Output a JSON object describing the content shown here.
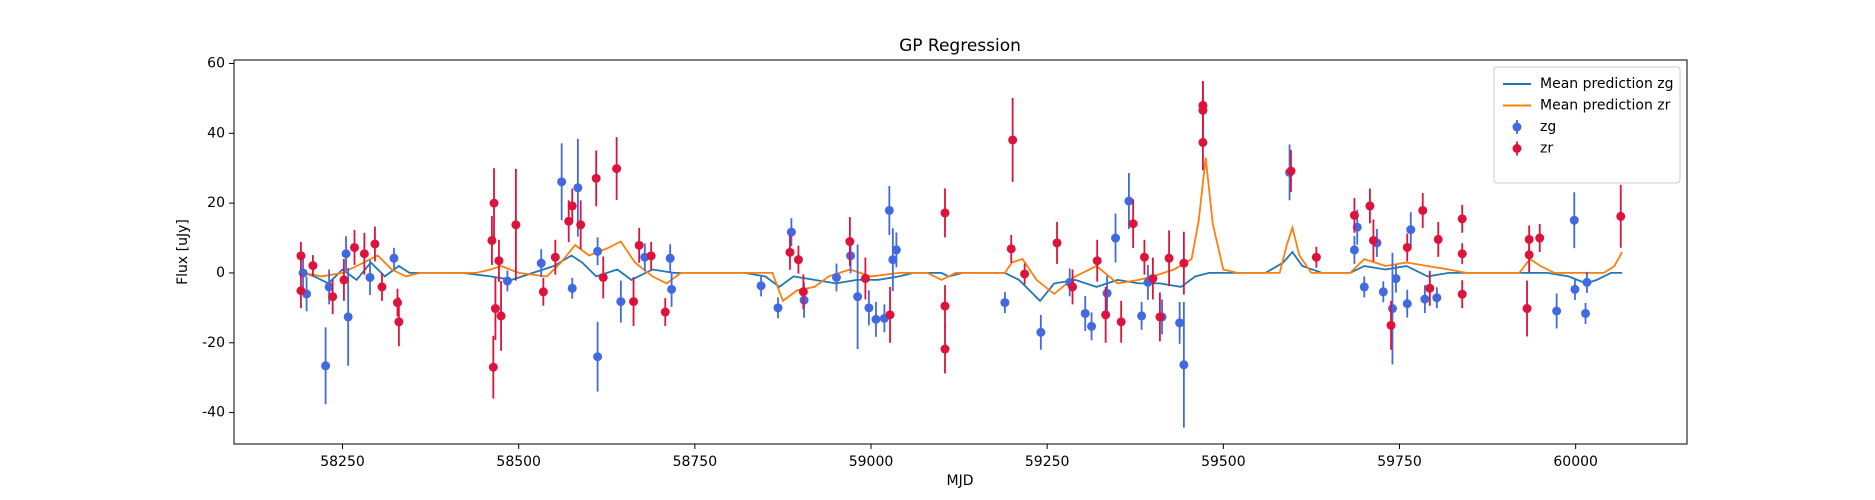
{
  "chart_data": {
    "type": "errorbar",
    "title": "GP Regression",
    "x_label": "MJD",
    "y_label": "Flux [uJy]",
    "xlim": [
      58096,
      60158
    ],
    "ylim": [
      -49,
      61
    ],
    "xticks": [
      58250,
      58500,
      58750,
      59000,
      59250,
      59500,
      59750,
      60000
    ],
    "yticks": [
      -40,
      -20,
      0,
      20,
      40,
      60
    ],
    "legend": "upper right",
    "series": [
      {
        "name": "Mean prediction zg",
        "style": "line",
        "color": "#1f77b4",
        "x": [
          58196,
          58210,
          58230,
          58250,
          58270,
          58290,
          58310,
          58330,
          58345,
          58420,
          58460,
          58490,
          58520,
          58550,
          58575,
          58590,
          58610,
          58640,
          58660,
          58690,
          58720,
          58760,
          58820,
          58850,
          58870,
          58890,
          58920,
          58950,
          58980,
          59010,
          59040,
          59060,
          59100,
          59110,
          59130,
          59190,
          59210,
          59240,
          59260,
          59290,
          59320,
          59350,
          59380,
          59410,
          59440,
          59460,
          59480,
          59560,
          59585,
          59598,
          59612,
          59640,
          59680,
          59700,
          59730,
          59760,
          59790,
          59820,
          59850,
          59960,
          59990,
          60015,
          60030,
          60050,
          60066
        ],
        "values": [
          0,
          -1,
          -3,
          1,
          -2,
          3,
          -1,
          2,
          0,
          0,
          -1,
          -2,
          0,
          2,
          5,
          3,
          -1,
          1,
          -2,
          1,
          0,
          0,
          0,
          -1,
          -4,
          -1,
          -2,
          -3,
          -2,
          -2,
          -1,
          0,
          0,
          -1,
          0,
          0,
          -2,
          -8,
          -3,
          -2,
          -4,
          -2,
          -3,
          -3,
          -4,
          -1,
          0,
          0,
          3,
          6,
          2,
          0,
          0,
          2,
          1,
          2,
          -1,
          0,
          0,
          0,
          -1,
          -3,
          -2,
          0,
          0
        ]
      },
      {
        "name": "Mean prediction zr",
        "style": "line",
        "color": "#ff7f0e",
        "x": [
          58196,
          58220,
          58250,
          58280,
          58300,
          58320,
          58340,
          58360,
          58440,
          58460,
          58475,
          58500,
          58540,
          58560,
          58580,
          58600,
          58625,
          58645,
          58665,
          58690,
          58710,
          58730,
          58860,
          58875,
          58895,
          58920,
          58940,
          58970,
          59000,
          59040,
          59080,
          59100,
          59110,
          59120,
          59190,
          59200,
          59215,
          59235,
          59260,
          59290,
          59320,
          59350,
          59380,
          59400,
          59430,
          59455,
          59465,
          59475,
          59485,
          59500,
          59520,
          59580,
          59590,
          59598,
          59608,
          59625,
          59680,
          59700,
          59730,
          59760,
          59790,
          59820,
          59845,
          59920,
          59935,
          59950,
          59970,
          60040,
          60055,
          60066
        ],
        "values": [
          0,
          -1,
          0,
          3,
          5,
          1,
          -1,
          0,
          0,
          1,
          2,
          0,
          -1,
          3,
          8,
          5,
          7,
          9,
          3,
          -1,
          -3,
          0,
          0,
          -8,
          -5,
          -4,
          -1,
          1,
          -1,
          0,
          0,
          -2,
          -1,
          0,
          0,
          3,
          4,
          -2,
          -6,
          -1,
          2,
          -3,
          -2,
          -1,
          1,
          4,
          15,
          33,
          14,
          1,
          0,
          0,
          8,
          13,
          5,
          0,
          0,
          4,
          2,
          3,
          2,
          1,
          0,
          0,
          4,
          2,
          0,
          0,
          2,
          6
        ]
      },
      {
        "name": "zg",
        "style": "errorbar",
        "color": "#4169e1",
        "x": [
          58194,
          58199,
          58226,
          58231,
          58255,
          58258,
          58289,
          58323,
          58484,
          58532,
          58561,
          58576,
          58584,
          58612,
          58612,
          58645,
          58679,
          58715,
          58717,
          58844,
          58868,
          58887,
          58905,
          58951,
          58971,
          58981,
          58997,
          59007,
          59019,
          59026,
          59031,
          59036,
          59190,
          59241,
          59282,
          59304,
          59313,
          59335,
          59347,
          59366,
          59384,
          59393,
          59413,
          59438,
          59444,
          59594,
          59686,
          59690,
          59700,
          59718,
          59727,
          59740,
          59745,
          59761,
          59766,
          59786,
          59803,
          59973,
          59998,
          59999,
          60014,
          60016
        ],
        "values": [
          0,
          -6,
          -26.6,
          -4,
          5.5,
          -12.6,
          -1.3,
          4.2,
          -2.3,
          2.8,
          26.1,
          -4.4,
          24.4,
          -24,
          6.2,
          -8.2,
          4.5,
          4.2,
          -4.7,
          -3.7,
          -10,
          11.7,
          -7.8,
          -1.3,
          4.9,
          -6.8,
          -10,
          -13.3,
          -13,
          17.9,
          3.8,
          6.6,
          -8.5,
          -17,
          -2.7,
          -11.6,
          -15.3,
          -5.8,
          10,
          20.6,
          -12.3,
          -2.7,
          -12.6,
          -14.3,
          -26.3,
          28.8,
          6.6,
          13.1,
          -4,
          8.6,
          -5.4,
          -10.2,
          -1.6,
          -8.8,
          12.4,
          -7.5,
          -7.1,
          -10.9,
          15.1,
          -4.7,
          -11.6,
          -2.7
        ],
        "errors": [
          6,
          5,
          11,
          5,
          5,
          14,
          5,
          3,
          3,
          4,
          11,
          3,
          14,
          10,
          4,
          6,
          4,
          4,
          5,
          3,
          3,
          4,
          5,
          4,
          5,
          15,
          5,
          5,
          4,
          7,
          9,
          5,
          3,
          5,
          4,
          5,
          4,
          5,
          7,
          8,
          4,
          5,
          5,
          6,
          18,
          8,
          4,
          5,
          3,
          4,
          3,
          16,
          4,
          4,
          5,
          4,
          3,
          5,
          8,
          3,
          3,
          3
        ]
      },
      {
        "name": "zr",
        "style": "errorbar",
        "color": "#dc143c",
        "x": [
          58191,
          58191,
          58208,
          58236,
          58252,
          58267,
          58281,
          58296,
          58306,
          58328,
          58330,
          58462,
          58464,
          58465,
          58467,
          58472,
          58475,
          58496,
          58535,
          58552,
          58571,
          58576,
          58588,
          58610,
          58620,
          58639,
          58663,
          58671,
          58688,
          58708,
          58885,
          58897,
          58904,
          58970,
          58992,
          59027,
          59105,
          59105,
          59105,
          59201,
          59199,
          59218,
          59264,
          59286,
          59321,
          59333,
          59355,
          59372,
          59388,
          59400,
          59410,
          59423,
          59444,
          59471,
          59471,
          59471,
          59596,
          59632,
          59686,
          59708,
          59713,
          59738,
          59761,
          59783,
          59793,
          59805,
          59839,
          59839,
          59839,
          59931,
          59934,
          59934,
          59949,
          60064
        ],
        "values": [
          4.9,
          -5.1,
          2.1,
          -6.8,
          -2,
          7.3,
          5.5,
          8.3,
          -4,
          -8.5,
          -14,
          9.3,
          -27,
          20,
          -10.2,
          3.5,
          -12.3,
          13.8,
          -5.4,
          4.5,
          14.8,
          19.2,
          13.8,
          27.1,
          -1.3,
          29.9,
          -8.2,
          7.9,
          4.9,
          -11.2,
          5.9,
          3.8,
          -5.4,
          9,
          -1.6,
          -12,
          17.2,
          -9.5,
          -21.8,
          38.1,
          6.9,
          -0.3,
          8.6,
          -4,
          3.5,
          -12,
          -14,
          14.1,
          4.5,
          -1.6,
          -12.6,
          4.2,
          2.8,
          46.6,
          37.4,
          48,
          29.2,
          4.5,
          16.5,
          19.2,
          9.3,
          -15,
          7.3,
          17.9,
          -4.4,
          9.6,
          15.5,
          -6.1,
          5.5,
          -10.2,
          5.2,
          9.6,
          10,
          16.2
        ],
        "errors": [
          4,
          5,
          3,
          5,
          6,
          5,
          6,
          5,
          4,
          4,
          7,
          7,
          9,
          10,
          9,
          6,
          10,
          16,
          4,
          5,
          6,
          5,
          7,
          8,
          6,
          9,
          7,
          5,
          4,
          4,
          5,
          4,
          5,
          7,
          6,
          8,
          7,
          6,
          7,
          12,
          4,
          3,
          6,
          5,
          6,
          8,
          6,
          7,
          5,
          6,
          7,
          8,
          9,
          8,
          8,
          7,
          6,
          3,
          5,
          5,
          6,
          7,
          4,
          5,
          5,
          5,
          4,
          4,
          3,
          8,
          5,
          4,
          4,
          9
        ]
      }
    ]
  }
}
